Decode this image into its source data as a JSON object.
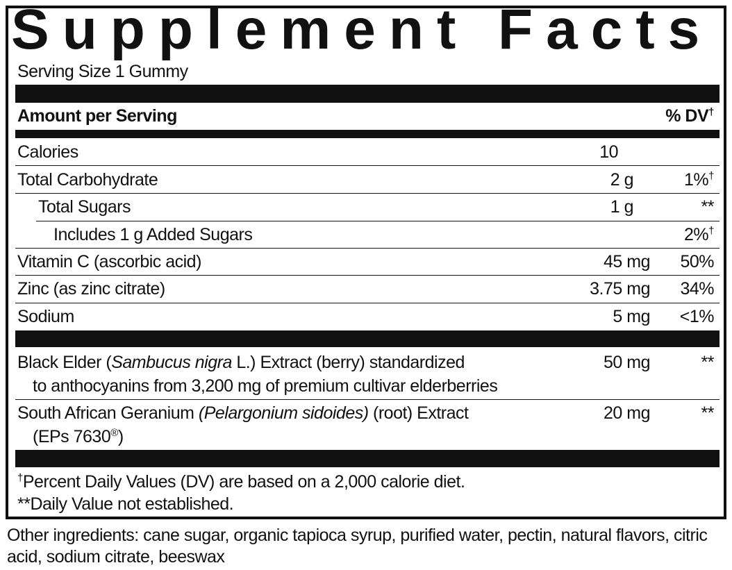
{
  "title": "Supplement Facts",
  "serving_size": "Serving Size 1 Gummy",
  "table": {
    "header": {
      "amount": "Amount per Serving",
      "dv": "% DV",
      "dv_mark": "†"
    },
    "rows": [
      {
        "name": "Calories",
        "amount": "10"
      },
      {
        "name": "Total Carbohydrate",
        "amount": "2 g",
        "dv": "1%",
        "dv_mark": "†"
      },
      {
        "name": "Total Sugars",
        "amount": "1 g",
        "dv": "**"
      },
      {
        "name": "Includes 1 g Added Sugars",
        "dv": "2%",
        "dv_mark": "†"
      },
      {
        "name": "Vitamin C (ascorbic acid)",
        "amount": "45 mg",
        "dv": "50%"
      },
      {
        "name": "Zinc (as zinc citrate)",
        "amount": "3.75 mg",
        "dv": "34%"
      },
      {
        "name": "Sodium",
        "amount": "5 mg",
        "dv": "<1%"
      }
    ],
    "extracts": [
      {
        "name": [
          "Black Elder (",
          "Sambucus nigra",
          " L.) Extract (berry) standardized",
          "to anthocyanins from 3,200 mg of premium cultivar elderberries"
        ],
        "amount": "50 mg",
        "dv": "**"
      },
      {
        "name": [
          "South African Geranium ",
          "(Pelargonium sidoides)",
          " (root) Extract",
          "(EPs 7630",
          "®",
          ")"
        ],
        "amount": "20 mg",
        "dv": "**"
      }
    ]
  },
  "footnotes": {
    "dv_note_mark": "†",
    "dv_note": "Percent Daily Values (DV) are based on a 2,000 calorie diet.",
    "not_established": "**Daily Value not established."
  },
  "other_ingredients": "Other ingredients: cane sugar, organic tapioca syrup, purified water, pectin, natural flavors, citric acid, sodium citrate, beeswax"
}
